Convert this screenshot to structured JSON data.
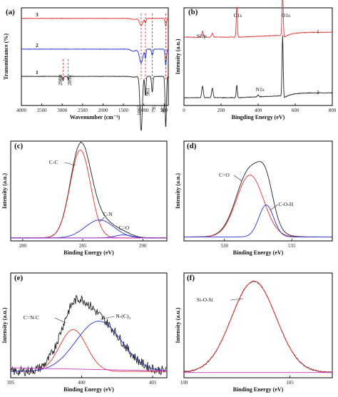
{
  "chart_data": [
    {
      "panel": "(a)",
      "type": "line",
      "xlabel": "Wavenumber (cm⁻¹)",
      "ylabel": "Transmittance (%)",
      "xlim": [
        4000,
        400
      ],
      "xticks": [
        4000,
        3500,
        3000,
        2500,
        2000,
        1500,
        1000,
        500
      ],
      "series": [
        {
          "name": "1",
          "color": "#222222",
          "baseline": 0.78,
          "bands": [
            [
              2980,
              0.05,
              12
            ],
            [
              2852,
              0.04,
              12
            ],
            [
              1065,
              0.62,
              28
            ],
            [
              961,
              0.22,
              14
            ],
            [
              793,
              0.18,
              16
            ],
            [
              462,
              0.58,
              16
            ]
          ]
        },
        {
          "name": "2",
          "color": "#2233cc",
          "baseline": 0.47,
          "bands": [
            [
              1065,
              0.16,
              40
            ],
            [
              961,
              0.1,
              14
            ],
            [
              793,
              0.07,
              18
            ],
            [
              462,
              0.18,
              16
            ]
          ]
        },
        {
          "name": "3",
          "color": "#dd3333",
          "baseline": 0.12,
          "bands": [
            [
              1065,
              0.08,
              40
            ],
            [
              961,
              0.05,
              14
            ],
            [
              462,
              0.09,
              16
            ]
          ]
        }
      ],
      "annotations": [
        "2980",
        "2852",
        "1065",
        "961",
        "793",
        "462"
      ],
      "dashed_lines": [
        2980,
        2852,
        1065,
        961,
        793,
        462
      ]
    },
    {
      "panel": "(b)",
      "type": "line",
      "xlabel": "Bingding Energy (eV)",
      "ylabel": "Intensity (a.u.)",
      "xlim": [
        0,
        800
      ],
      "xticks": [
        0,
        200,
        400,
        600,
        800
      ],
      "series": [
        {
          "name": "1",
          "color": "#dd3333",
          "baseline": 0.3,
          "peaks": [
            [
              100,
              0.06,
              4
            ],
            [
              153,
              0.04,
              4
            ],
            [
              285,
              0.32,
              3
            ],
            [
              532,
              0.48,
              3
            ]
          ]
        },
        {
          "name": "2",
          "color": "#222222",
          "baseline": 0.92,
          "peaks": [
            [
              100,
              0.12,
              4
            ],
            [
              153,
              0.1,
              4
            ],
            [
              285,
              0.13,
              3
            ],
            [
              400,
              0.02,
              4
            ],
            [
              532,
              0.62,
              3
            ]
          ]
        }
      ],
      "annotations": [
        "Si2p",
        "C1s",
        "O1s",
        "N1s"
      ]
    },
    {
      "panel": "(c)",
      "type": "line",
      "xlabel": "Binding Energy (eV)",
      "ylabel": "Intensity (a.u.)",
      "xlim": [
        279,
        292
      ],
      "xticks": [
        280,
        285,
        290
      ],
      "series": [
        {
          "name": "envelope",
          "color": "#222222"
        },
        {
          "name": "C-C",
          "color": "#dd3333",
          "center": 284.8,
          "height": 0.88,
          "width": 0.85
        },
        {
          "name": "C-N",
          "color": "#2233cc",
          "center": 286.4,
          "height": 0.18,
          "width": 1.2
        },
        {
          "name": "C=O",
          "color": "#2233cc",
          "center": 288.4,
          "height": 0.03,
          "width": 0.7
        }
      ],
      "annotations": [
        "C-C",
        "C-N",
        "C=O"
      ]
    },
    {
      "panel": "(d)",
      "type": "line",
      "xlabel": "Binding Energy (eV)",
      "ylabel": "Intensity (a.u.)",
      "xlim": [
        527,
        538
      ],
      "xticks": [
        530,
        535
      ],
      "series": [
        {
          "name": "envelope",
          "color": "#222222"
        },
        {
          "name": "C=O",
          "color": "#dd3333",
          "center": 531.9,
          "height": 0.62,
          "width": 1.0
        },
        {
          "name": "C-O-H",
          "color": "#2233cc",
          "center": 533.1,
          "height": 0.32,
          "width": 0.55
        }
      ],
      "annotations": [
        "C=O",
        "C-O-H"
      ]
    },
    {
      "panel": "(e)",
      "type": "line",
      "xlabel": "Binding Energy (eV)",
      "ylabel": "Intensity (a.u.)",
      "xlim": [
        395,
        406
      ],
      "xticks": [
        395,
        400,
        405
      ],
      "series": [
        {
          "name": "noisy data",
          "color": "#222222"
        },
        {
          "name": "C=N-C",
          "color": "#dd3333",
          "center": 399.4,
          "height": 0.4,
          "width": 0.95
        },
        {
          "name": "N-(C)3",
          "color": "#2233cc",
          "center": 401.2,
          "height": 0.48,
          "width": 1.6
        },
        {
          "name": "baseline",
          "color": "#cc33cc"
        }
      ],
      "annotations": [
        "C=N-C",
        "N-(C)"
      ]
    },
    {
      "panel": "(f)",
      "type": "line",
      "xlabel": "Binding Energy (eV)",
      "ylabel": "Intensity (a.u.)",
      "xlim": [
        100,
        107
      ],
      "xticks": [
        100,
        105
      ],
      "series": [
        {
          "name": "data",
          "color": "#222222"
        },
        {
          "name": "Si-O-Si",
          "color": "#dd3333",
          "center": 103.3,
          "height": 0.87,
          "width": 1.05
        },
        {
          "name": "baseline",
          "color": "#cc33cc"
        }
      ],
      "annotations": [
        "Si-O-Si"
      ]
    }
  ]
}
